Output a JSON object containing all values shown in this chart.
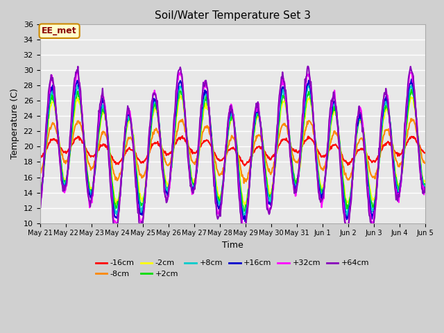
{
  "title": "Soil/Water Temperature Set 3",
  "xlabel": "Time",
  "ylabel": "Temperature (C)",
  "ylim": [
    10,
    36
  ],
  "annotation": "EE_met",
  "bg_color": "#e8e8e8",
  "series_colors": {
    "-16cm": "#ff0000",
    "-8cm": "#ff8800",
    "-2cm": "#ffff00",
    "+2cm": "#00dd00",
    "+8cm": "#00cccc",
    "+16cm": "#0000cc",
    "+32cm": "#ff00ff",
    "+64cm": "#8800bb"
  },
  "xtick_labels": [
    "May 21",
    "May 22",
    "May 23",
    "May 24",
    "May 25",
    "May 26",
    "May 27",
    "May 28",
    "May 29",
    "May 30",
    "May 31",
    "Jun 1",
    "Jun 2",
    "Jun 3",
    "Jun 4",
    "Jun 5"
  ],
  "n_days": 15,
  "points_per_day": 48
}
